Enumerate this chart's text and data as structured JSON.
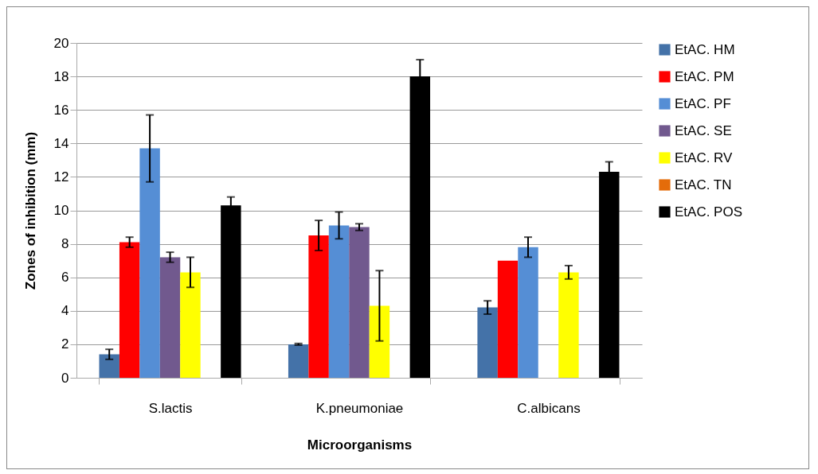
{
  "chart_data": {
    "type": "bar",
    "xlabel": "Microorganisms",
    "ylabel": "Zones of inhibition  (mm)",
    "categories": [
      "S.lactis",
      "K.pneumoniae",
      "C.albicans"
    ],
    "series": [
      {
        "name": "EtAC. HM",
        "color": "#4472a8",
        "values": [
          1.4,
          2.0,
          4.2
        ],
        "errors": [
          0.3,
          0.05,
          0.4
        ]
      },
      {
        "name": "EtAC. PM",
        "color": "#ff0000",
        "values": [
          8.1,
          8.5,
          7.0
        ],
        "errors": [
          0.3,
          0.9,
          null
        ]
      },
      {
        "name": "EtAC. PF",
        "color": "#558ed5",
        "values": [
          13.7,
          9.1,
          7.8
        ],
        "errors": [
          2.0,
          0.8,
          0.6
        ]
      },
      {
        "name": "EtAC. SE",
        "color": "#71598e",
        "values": [
          7.2,
          9.0,
          0
        ],
        "errors": [
          0.3,
          0.2,
          null
        ]
      },
      {
        "name": "EtAC. RV",
        "color": "#ffff00",
        "values": [
          6.3,
          4.3,
          6.3
        ],
        "errors": [
          0.9,
          2.1,
          0.4
        ]
      },
      {
        "name": "EtAC. TN",
        "color": "#e46c0a",
        "values": [
          0,
          0,
          0
        ],
        "errors": [
          null,
          null,
          null
        ]
      },
      {
        "name": "EtAC. POS",
        "color": "#000000",
        "values": [
          10.3,
          18.0,
          12.3
        ],
        "errors": [
          0.5,
          1.0,
          0.6
        ]
      }
    ],
    "ylim": [
      0,
      20
    ],
    "yticks": [
      0,
      2,
      4,
      6,
      8,
      10,
      12,
      14,
      16,
      18,
      20
    ],
    "grid": "y",
    "legend": "right"
  }
}
